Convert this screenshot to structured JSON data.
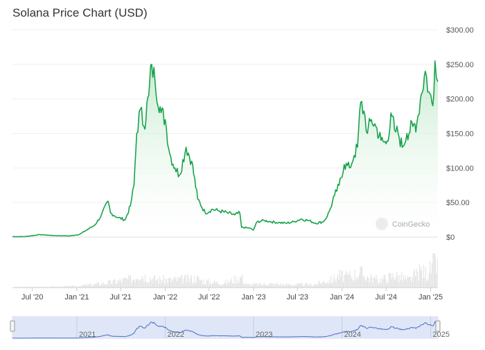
{
  "title": "Solana Price Chart (USD)",
  "watermark": "CoinGecko",
  "chart_data": {
    "type": "area",
    "title": "Solana Price Chart (USD)",
    "xlabel": "",
    "ylabel": "",
    "ylim": [
      0,
      300
    ],
    "yticks": [
      "$300.00",
      "$250.00",
      "$200.00",
      "$150.00",
      "$100.00",
      "$50.00",
      "$0"
    ],
    "ytick_values": [
      300,
      250,
      200,
      150,
      100,
      50,
      0
    ],
    "xticks": [
      "Jul '20",
      "Jan '21",
      "Jul '21",
      "Jan '22",
      "Jul '22",
      "Jan '23",
      "Jul '23",
      "Jan '24",
      "Jul '24",
      "Jan '25"
    ],
    "xtick_values": [
      "2020-07-01",
      "2021-01-01",
      "2021-07-01",
      "2022-01-01",
      "2022-07-01",
      "2023-01-01",
      "2023-07-01",
      "2024-01-01",
      "2024-07-01",
      "2025-01-01"
    ],
    "x_range": [
      "2020-04-10",
      "2025-01-31"
    ],
    "navigator_labels": [
      "2021",
      "2022",
      "2023",
      "2024",
      "2025"
    ],
    "navigator_label_values": [
      "2021-01-01",
      "2022-01-01",
      "2023-01-01",
      "2024-01-01",
      "2025-01-01"
    ],
    "grid": true,
    "legend": "none",
    "colors": {
      "line": "#16a34a",
      "fill_top": "#bfe8c9",
      "volume": "#e5e5e5",
      "navigator_line": "#4a6bc7",
      "navigator_bg": "#dfe6f7"
    },
    "series": [
      {
        "x": [
          "2020-04-10",
          "2020-06-01",
          "2020-08-01",
          "2020-08-20",
          "2020-10-01",
          "2020-12-01",
          "2021-01-10",
          "2021-02-10",
          "2021-03-01",
          "2021-03-15",
          "2021-04-10",
          "2021-05-10",
          "2021-05-20",
          "2021-06-20",
          "2021-07-20",
          "2021-08-10",
          "2021-08-25",
          "2021-09-05",
          "2021-09-20",
          "2021-10-05",
          "2021-10-25",
          "2021-11-06",
          "2021-11-20",
          "2021-12-15",
          "2022-01-01",
          "2022-01-20",
          "2022-02-10",
          "2022-03-01",
          "2022-03-28",
          "2022-04-20",
          "2022-05-15",
          "2022-06-15",
          "2022-07-15",
          "2022-08-10",
          "2022-09-15",
          "2022-10-15",
          "2022-11-05",
          "2022-11-12",
          "2022-12-15",
          "2022-12-31",
          "2023-01-15",
          "2023-02-15",
          "2023-03-15",
          "2023-04-15",
          "2023-05-15",
          "2023-06-15",
          "2023-07-15",
          "2023-08-15",
          "2023-09-15",
          "2023-10-15",
          "2023-11-01",
          "2023-11-15",
          "2023-12-01",
          "2023-12-20",
          "2024-01-10",
          "2024-02-01",
          "2024-02-20",
          "2024-03-05",
          "2024-03-18",
          "2024-04-05",
          "2024-04-15",
          "2024-05-01",
          "2024-05-20",
          "2024-06-10",
          "2024-07-01",
          "2024-07-25",
          "2024-08-05",
          "2024-08-20",
          "2024-09-06",
          "2024-09-25",
          "2024-10-20",
          "2024-11-05",
          "2024-11-20",
          "2024-12-10",
          "2024-12-25",
          "2025-01-10",
          "2025-01-19",
          "2025-01-25",
          "2025-01-31"
        ],
        "y": [
          0.6,
          0.6,
          3.5,
          3.0,
          2.0,
          1.6,
          3.5,
          10,
          14,
          17,
          30,
          52,
          35,
          28,
          25,
          45,
          75,
          150,
          185,
          160,
          205,
          250,
          225,
          180,
          170,
          120,
          100,
          90,
          130,
          110,
          55,
          35,
          40,
          38,
          35,
          32,
          35,
          14,
          13,
          10,
          22,
          24,
          22,
          21,
          20,
          22,
          26,
          24,
          20,
          22,
          30,
          42,
          60,
          75,
          105,
          100,
          118,
          130,
          195,
          175,
          150,
          170,
          160,
          140,
          135,
          175,
          155,
          150,
          130,
          150,
          160,
          165,
          200,
          240,
          210,
          190,
          255,
          230,
          225
        ]
      }
    ],
    "volume": {
      "x": [
        "2020-04-10",
        "2020-10-01",
        "2021-01-01",
        "2021-05-01",
        "2021-08-20",
        "2021-09-10",
        "2021-11-10",
        "2022-01-20",
        "2022-05-10",
        "2022-06-15",
        "2022-09-01",
        "2022-11-10",
        "2022-12-01",
        "2023-03-01",
        "2023-06-01",
        "2023-09-01",
        "2023-11-15",
        "2023-12-20",
        "2024-01-20",
        "2024-03-15",
        "2024-04-10",
        "2024-06-01",
        "2024-08-05",
        "2024-10-01",
        "2024-11-20",
        "2024-12-20",
        "2025-01-19",
        "2025-01-31"
      ],
      "y": [
        0.2,
        0.3,
        0.5,
        1.5,
        3.0,
        4.5,
        2.8,
        2.5,
        3.0,
        2.0,
        1.5,
        3.5,
        1.0,
        1.2,
        1.0,
        1.0,
        2.5,
        4.0,
        3.5,
        5.0,
        3.5,
        2.5,
        4.0,
        2.5,
        5.5,
        4.5,
        9.0,
        5.0
      ]
    }
  }
}
